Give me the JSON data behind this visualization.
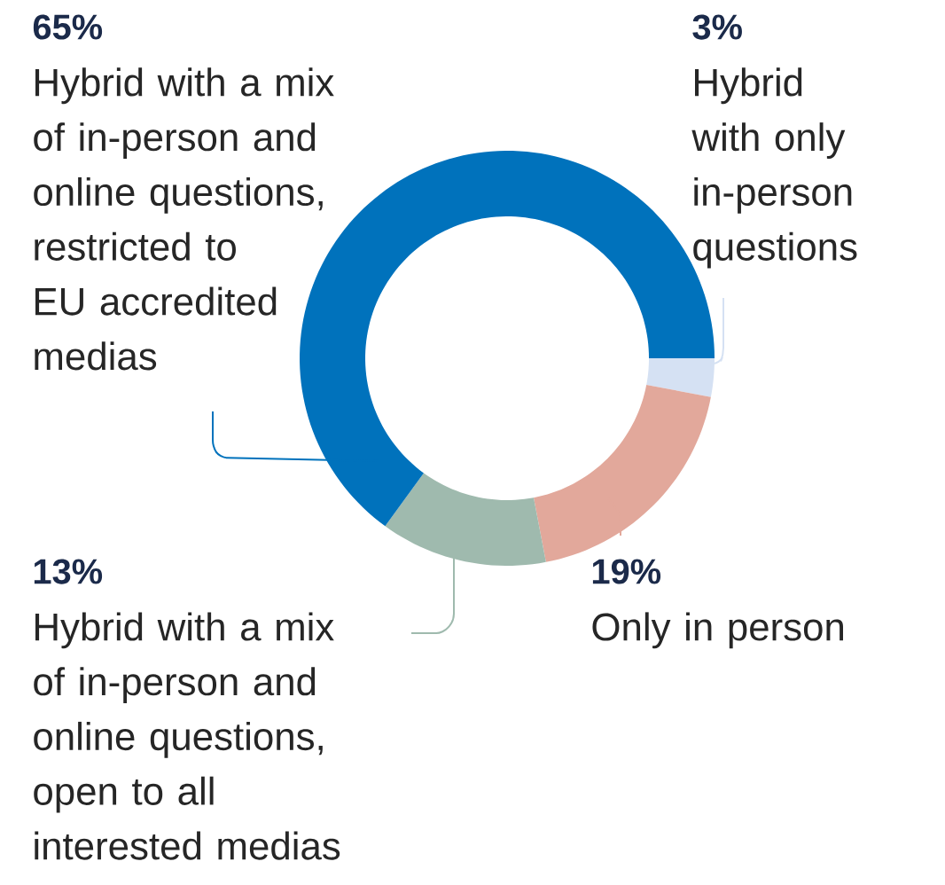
{
  "chart_data": {
    "type": "donut",
    "categories": [
      "Hybrid with only in-person questions",
      "Only in person",
      "Hybrid with a mix of in-person and online questions, open to all interested medias",
      "Hybrid with a mix of in-person and online questions, restricted to EU accredited medias"
    ],
    "values": [
      3,
      19,
      13,
      65
    ],
    "colors": [
      "#d5e1f3",
      "#e2a89b",
      "#9fbaae",
      "#0072bc"
    ],
    "value_labels": [
      "3%",
      "19%",
      "13%",
      "65%"
    ]
  }
}
